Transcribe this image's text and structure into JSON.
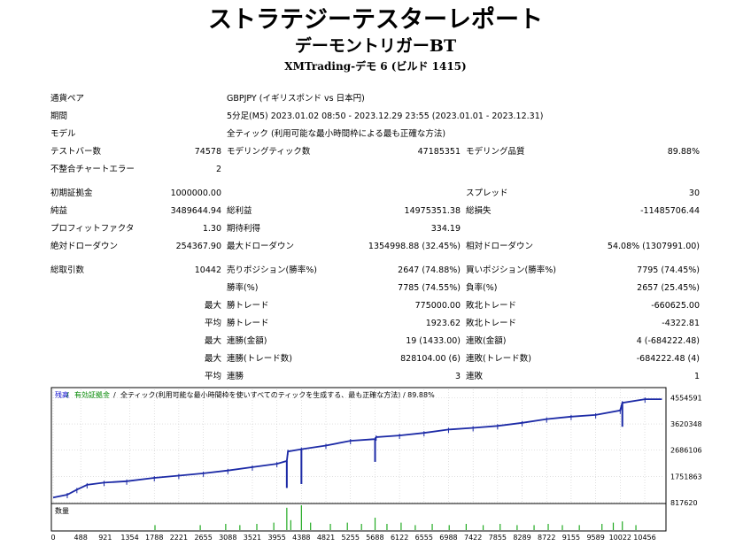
{
  "header": {
    "title": "ストラテジーテスターレポート",
    "ea_name": "デーモントリガーBT",
    "account": "XMTrading-デモ 6 (ビルド 1415)"
  },
  "settings": {
    "symbol_label": "通貨ペア",
    "symbol_value": "GBPJPY (イギリスポンド vs 日本円)",
    "period_label": "期間",
    "period_value": "5分足(M5) 2023.01.02 08:50 - 2023.12.29 23:55 (2023.01.01 - 2023.12.31)",
    "model_label": "モデル",
    "model_value": "全ティック (利用可能な最小時間枠による最も正確な方法)",
    "bars_label": "テストバー数",
    "bars_value": "74578",
    "ticks_label": "モデリングティック数",
    "ticks_value": "47185351",
    "quality_label": "モデリング品質",
    "quality_value": "89.88%",
    "mismatch_label": "不整合チャートエラー",
    "mismatch_value": "2"
  },
  "results": {
    "deposit_label": "初期証拠金",
    "deposit_value": "1000000.00",
    "spread_label": "スプレッド",
    "spread_value": "30",
    "net_label": "純益",
    "net_value": "3489644.94",
    "gross_profit_label": "総利益",
    "gross_profit_value": "14975351.38",
    "gross_loss_label": "総損失",
    "gross_loss_value": "-11485706.44",
    "pf_label": "プロフィットファクタ",
    "pf_value": "1.30",
    "payoff_label": "期待利得",
    "payoff_value": "334.19",
    "abs_dd_label": "絶対ドローダウン",
    "abs_dd_value": "254367.90",
    "max_dd_label": "最大ドローダウン",
    "max_dd_value": "1354998.88 (32.45%)",
    "rel_dd_label": "相対ドローダウン",
    "rel_dd_value": "54.08% (1307991.00)",
    "trades_label": "総取引数",
    "trades_value": "10442",
    "short_label": "売りポジション(勝率%)",
    "short_value": "2647 (74.88%)",
    "long_label": "買いポジション(勝率%)",
    "long_value": "7795 (74.45%)",
    "win_pct_label": "勝率(%)",
    "win_pct_value": "7785 (74.55%)",
    "loss_pct_label": "負率(%)",
    "loss_pct_value": "2657 (25.45%)",
    "max_prefix": "最大",
    "avg_prefix": "平均",
    "largest_win_label": "勝トレード",
    "largest_win_value": "775000.00",
    "largest_loss_label": "敗北トレード",
    "largest_loss_value": "-660625.00",
    "avg_win_label": "勝トレード",
    "avg_win_value": "1923.62",
    "avg_loss_label": "敗北トレード",
    "avg_loss_value": "-4322.81",
    "consec_win_money_label": "連勝(金額)",
    "consec_win_money_value": "19 (1433.00)",
    "consec_loss_money_label": "連敗(金額)",
    "consec_loss_money_value": "4 (-684222.48)",
    "consec_win_trades_label": "連勝(トレード数)",
    "consec_win_trades_value": "828104.00 (6)",
    "consec_loss_trades_label": "連敗(トレード数)",
    "consec_loss_trades_value": "-684222.48 (4)",
    "avg_consec_win_label": "連勝",
    "avg_consec_win_value": "3",
    "avg_consec_loss_label": "連敗",
    "avg_consec_loss_value": "1"
  },
  "chart_data": {
    "type": "line",
    "legend": {
      "balance": "残高",
      "equity": "有効証拠金",
      "info": "全ティック(利用可能な最小時間枠を使いすべてのティックを生成する、最も正確な方法) / 89.88%"
    },
    "y_ticks": [
      "4554591",
      "3620348",
      "2686106",
      "1751863",
      "817620"
    ],
    "y_tick_values": [
      4554591,
      3620348,
      2686106,
      1751863,
      817620
    ],
    "ylim": [
      817620,
      4850000
    ],
    "xlim": [
      0,
      10800
    ],
    "x_ticks": [
      "0",
      "488",
      "921",
      "1354",
      "1788",
      "2221",
      "2655",
      "3088",
      "3521",
      "3955",
      "4388",
      "4821",
      "5255",
      "5688",
      "6122",
      "6555",
      "6988",
      "7422",
      "7855",
      "8289",
      "8722",
      "9155",
      "9589",
      "10022",
      "10456"
    ],
    "x_tick_values": [
      0,
      488,
      921,
      1354,
      1788,
      2221,
      2655,
      3088,
      3521,
      3955,
      4388,
      4821,
      5255,
      5688,
      6122,
      6555,
      6988,
      7422,
      7855,
      8289,
      8722,
      9155,
      9589,
      10022,
      10456
    ],
    "balance": {
      "x": [
        0,
        250,
        420,
        600,
        900,
        1300,
        1788,
        2221,
        2655,
        3088,
        3521,
        3955,
        4130,
        4150,
        4388,
        4821,
        5255,
        5690,
        5710,
        6122,
        6555,
        6988,
        7422,
        7855,
        8289,
        8722,
        9155,
        9589,
        10022,
        10060,
        10460,
        10760
      ],
      "y": [
        1000000,
        1100000,
        1280000,
        1450000,
        1530000,
        1580000,
        1700000,
        1780000,
        1860000,
        1960000,
        2080000,
        2200000,
        2300000,
        2640000,
        2720000,
        2850000,
        3020000,
        3080000,
        3150000,
        3210000,
        3300000,
        3420000,
        3480000,
        3550000,
        3660000,
        3790000,
        3880000,
        3940000,
        4100000,
        4370000,
        4500000,
        4500000
      ]
    },
    "drawdown_spikes": [
      {
        "x": 4130,
        "y": 1340000
      },
      {
        "x": 4388,
        "y": 1480000
      },
      {
        "x": 5690,
        "y": 2270000
      },
      {
        "x": 10060,
        "y": 3520000
      }
    ],
    "volume_label": "数量",
    "volume_spikes": [
      {
        "x": 1800,
        "h": 0.2
      },
      {
        "x": 2600,
        "h": 0.2
      },
      {
        "x": 3050,
        "h": 0.25
      },
      {
        "x": 3300,
        "h": 0.2
      },
      {
        "x": 3600,
        "h": 0.25
      },
      {
        "x": 3900,
        "h": 0.3
      },
      {
        "x": 4130,
        "h": 0.9
      },
      {
        "x": 4200,
        "h": 0.4
      },
      {
        "x": 4388,
        "h": 1.0
      },
      {
        "x": 4550,
        "h": 0.3
      },
      {
        "x": 4900,
        "h": 0.25
      },
      {
        "x": 5200,
        "h": 0.3
      },
      {
        "x": 5450,
        "h": 0.25
      },
      {
        "x": 5690,
        "h": 0.5
      },
      {
        "x": 5900,
        "h": 0.25
      },
      {
        "x": 6150,
        "h": 0.3
      },
      {
        "x": 6400,
        "h": 0.2
      },
      {
        "x": 6700,
        "h": 0.25
      },
      {
        "x": 7000,
        "h": 0.2
      },
      {
        "x": 7300,
        "h": 0.25
      },
      {
        "x": 7600,
        "h": 0.2
      },
      {
        "x": 7900,
        "h": 0.25
      },
      {
        "x": 8200,
        "h": 0.2
      },
      {
        "x": 8500,
        "h": 0.2
      },
      {
        "x": 8750,
        "h": 0.25
      },
      {
        "x": 9000,
        "h": 0.2
      },
      {
        "x": 9300,
        "h": 0.2
      },
      {
        "x": 9700,
        "h": 0.25
      },
      {
        "x": 9900,
        "h": 0.3
      },
      {
        "x": 10060,
        "h": 0.35
      },
      {
        "x": 10300,
        "h": 0.2
      }
    ]
  }
}
